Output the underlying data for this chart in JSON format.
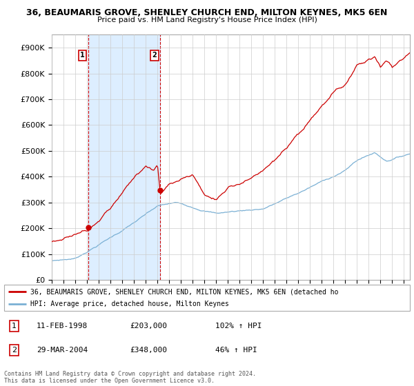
{
  "title_line1": "36, BEAUMARIS GROVE, SHENLEY CHURCH END, MILTON KEYNES, MK5 6EN",
  "title_line2": "Price paid vs. HM Land Registry's House Price Index (HPI)",
  "ylabel_ticks": [
    "£0",
    "£100K",
    "£200K",
    "£300K",
    "£400K",
    "£500K",
    "£600K",
    "£700K",
    "£800K",
    "£900K"
  ],
  "ytick_values": [
    0,
    100000,
    200000,
    300000,
    400000,
    500000,
    600000,
    700000,
    800000,
    900000
  ],
  "ylim": [
    0,
    950000
  ],
  "xlim_start": 1995.0,
  "xlim_end": 2025.5,
  "point1_x": 1998.12,
  "point1_y": 203000,
  "point1_label": "1",
  "point2_x": 2004.25,
  "point2_y": 348000,
  "point2_label": "2",
  "legend_line1": "36, BEAUMARIS GROVE, SHENLEY CHURCH END, MILTON KEYNES, MK5 6EN (detached ho",
  "legend_line2": "HPI: Average price, detached house, Milton Keynes",
  "table_row1": [
    "1",
    "11-FEB-1998",
    "£203,000",
    "102% ↑ HPI"
  ],
  "table_row2": [
    "2",
    "29-MAR-2004",
    "£348,000",
    "46% ↑ HPI"
  ],
  "footer": "Contains HM Land Registry data © Crown copyright and database right 2024.\nThis data is licensed under the Open Government Licence v3.0.",
  "line_color_red": "#cc0000",
  "line_color_blue": "#7ab0d4",
  "bg_color": "#ffffff",
  "grid_color": "#cccccc",
  "shade_color": "#ddeeff"
}
